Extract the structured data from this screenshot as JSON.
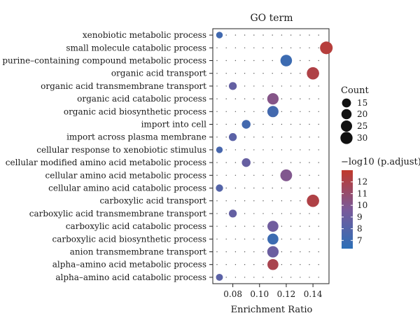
{
  "chart_data": {
    "type": "scatter",
    "title": "GO term",
    "xlabel": "Enrichment Ratio",
    "ylabel": "",
    "xlim": [
      0.065,
      0.152
    ],
    "x_ticks": [
      0.08,
      0.1,
      0.12,
      0.14
    ],
    "x_tick_labels": [
      "0.08",
      "0.10",
      "0.12",
      "0.14"
    ],
    "categories": [
      "xenobiotic metabolic process",
      "small molecule catabolic process",
      "purine–containing compound metabolic process",
      "organic acid transport",
      "organic acid transmembrane transport",
      "organic acid catabolic process",
      "organic acid biosynthetic process",
      "import into cell",
      "import across plasma membrane",
      "cellular response to xenobiotic stimulus",
      "cellular modified amino acid metabolic process",
      "cellular amino acid metabolic process",
      "cellular amino acid catabolic process",
      "carboxylic acid transport",
      "carboxylic acid transmembrane transport",
      "carboxylic acid catabolic process",
      "carboxylic acid biosynthetic process",
      "anion transmembrane transport",
      "alpha–amino acid metabolic process",
      "alpha–amino acid catabolic process"
    ],
    "points": [
      {
        "term": "xenobiotic metabolic process",
        "x": 0.07,
        "count": 7,
        "padj": 7.2
      },
      {
        "term": "small molecule catabolic process",
        "x": 0.15,
        "count": 33,
        "padj": 12.5
      },
      {
        "term": "purine–containing compound metabolic process",
        "x": 0.12,
        "count": 27,
        "padj": 7.0
      },
      {
        "term": "organic acid transport",
        "x": 0.14,
        "count": 31,
        "padj": 12.2
      },
      {
        "term": "organic acid transmembrane transport",
        "x": 0.08,
        "count": 11,
        "padj": 8.7
      },
      {
        "term": "organic acid catabolic process",
        "x": 0.11,
        "count": 26,
        "padj": 10.2
      },
      {
        "term": "organic acid biosynthetic process",
        "x": 0.11,
        "count": 25,
        "padj": 7.3
      },
      {
        "term": "import into cell",
        "x": 0.09,
        "count": 14,
        "padj": 7.3
      },
      {
        "term": "import across plasma membrane",
        "x": 0.08,
        "count": 11,
        "padj": 8.3
      },
      {
        "term": "cellular response to xenobiotic stimulus",
        "x": 0.07,
        "count": 7,
        "padj": 7.5
      },
      {
        "term": "cellular modified amino acid metabolic process",
        "x": 0.09,
        "count": 14,
        "padj": 8.8
      },
      {
        "term": "cellular amino acid metabolic process",
        "x": 0.12,
        "count": 28,
        "padj": 10.0
      },
      {
        "term": "cellular amino acid catabolic process",
        "x": 0.07,
        "count": 9,
        "padj": 8.0
      },
      {
        "term": "carboxylic acid transport",
        "x": 0.14,
        "count": 31,
        "padj": 12.2
      },
      {
        "term": "carboxylic acid transmembrane transport",
        "x": 0.08,
        "count": 11,
        "padj": 8.7
      },
      {
        "term": "carboxylic acid catabolic process",
        "x": 0.11,
        "count": 24,
        "padj": 9.2
      },
      {
        "term": "carboxylic acid biosynthetic process",
        "x": 0.11,
        "count": 24,
        "padj": 7.0
      },
      {
        "term": "anion transmembrane transport",
        "x": 0.11,
        "count": 26,
        "padj": 9.0
      },
      {
        "term": "alpha–amino acid metabolic process",
        "x": 0.11,
        "count": 24,
        "padj": 11.9
      },
      {
        "term": "alpha–amino acid catabolic process",
        "x": 0.07,
        "count": 8,
        "padj": 8.3
      }
    ],
    "size_legend": {
      "title": "Count",
      "values": [
        15,
        20,
        25,
        30
      ],
      "labels": [
        "15",
        "20",
        "25",
        "30"
      ]
    },
    "color_legend": {
      "title": "−log10 (p.adjust)",
      "min": 6.3,
      "max": 13.0,
      "ticks": [
        7,
        8,
        9,
        10,
        11,
        12
      ],
      "tick_labels": [
        "7",
        "8",
        "9",
        "10",
        "11",
        "12"
      ],
      "low_color": "#2c6fb7",
      "high_color": "#c0392b"
    },
    "grid": "dotted-points",
    "legend_placement": "right"
  }
}
